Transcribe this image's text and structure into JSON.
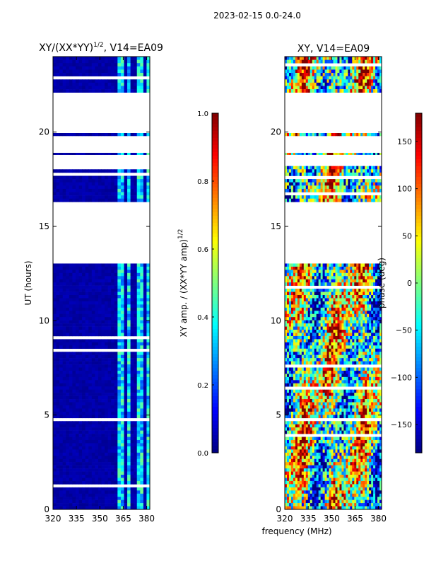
{
  "figure": {
    "suptitle": "2023-02-15 0.0-24.0",
    "xlabel_shared": "frequency (MHz)"
  },
  "colors": {
    "jet": [
      "#00007f",
      "#0000ff",
      "#007fff",
      "#00ffff",
      "#7fff7f",
      "#ffff00",
      "#ff7f00",
      "#ff0000",
      "#7f0000"
    ],
    "background": "#ffffff"
  },
  "chart_data": [
    {
      "type": "heatmap",
      "title": "XY/(XX*YY)",
      "title_sup": "1/2",
      "title_suffix": ", V14=EA09",
      "ylabel": "UT (hours)",
      "xlabel": "",
      "xlim": [
        320,
        382
      ],
      "ylim": [
        0,
        24
      ],
      "xticks": [
        "320",
        "335",
        "350",
        "365",
        "380"
      ],
      "xtick_values": [
        320,
        335,
        350,
        365,
        380
      ],
      "yticks": [
        "0",
        "5",
        "10",
        "15",
        "20"
      ],
      "ytick_values": [
        0,
        5,
        10,
        15,
        20
      ],
      "colorbar": {
        "label": "XY amp. / (XX*YY amp)",
        "label_sup": "1/2",
        "range": [
          0.0,
          1.0
        ],
        "ticks": [
          "0.0",
          "0.2",
          "0.4",
          "0.6",
          "0.8",
          "1.0"
        ],
        "tick_values": [
          0.0,
          0.2,
          0.4,
          0.6,
          0.8,
          1.0
        ]
      },
      "data_segments_hours": [
        [
          0.0,
          13.2
        ],
        [
          16.3,
          18.2
        ],
        [
          18.8,
          18.9
        ],
        [
          19.8,
          19.95
        ],
        [
          22.1,
          24.0
        ]
      ],
      "typical_value": 0.02,
      "bright_bands_mhz": [
        [
          362,
          366
        ],
        [
          367,
          369
        ],
        [
          373,
          377
        ],
        [
          379,
          381
        ]
      ],
      "bright_value": 0.35
    },
    {
      "type": "heatmap",
      "title": "XY, V14=EA09",
      "ylabel": "",
      "xlabel": "",
      "xlim": [
        320,
        382
      ],
      "ylim": [
        0,
        24
      ],
      "xticks": [
        "320",
        "335",
        "350",
        "365",
        "380"
      ],
      "xtick_values": [
        320,
        335,
        350,
        365,
        380
      ],
      "yticks": [
        "0",
        "5",
        "10",
        "15",
        "20"
      ],
      "ytick_values": [
        0,
        5,
        10,
        15,
        20
      ],
      "colorbar": {
        "label": "phase (deg)",
        "range": [
          -180,
          180
        ],
        "ticks": [
          "−150",
          "−100",
          "−50",
          "0",
          "50",
          "100",
          "150"
        ],
        "tick_values": [
          -150,
          -100,
          -50,
          0,
          50,
          100,
          150
        ]
      },
      "data_segments_hours": [
        [
          0.0,
          13.2
        ],
        [
          16.3,
          18.2
        ],
        [
          18.8,
          18.9
        ],
        [
          19.8,
          19.95
        ],
        [
          22.1,
          24.0
        ]
      ],
      "value_range": [
        -180,
        180
      ]
    }
  ]
}
